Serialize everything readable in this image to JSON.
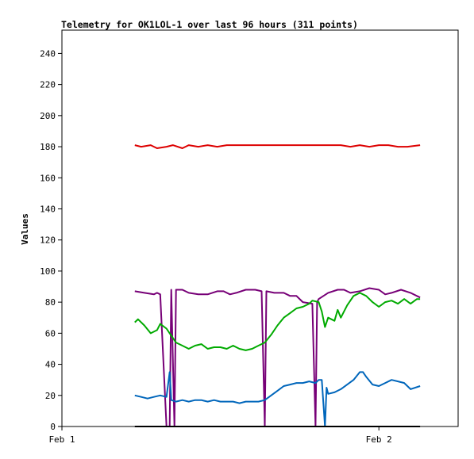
{
  "chart_data": {
    "type": "line",
    "title": "Telemetry for OK1LOL-1 over last 96 hours (311 points)",
    "xlabel": "",
    "ylabel": "Values",
    "x_unit": "days since Feb 1",
    "xlim": [
      0,
      1.25
    ],
    "ylim": [
      0,
      255
    ],
    "x_ticks": [
      {
        "label": "Feb 1",
        "x": 0
      },
      {
        "label": "Feb 2",
        "x": 1
      }
    ],
    "y_ticks": [
      0,
      20,
      40,
      60,
      80,
      100,
      120,
      140,
      160,
      180,
      200,
      220,
      240
    ],
    "grid": false,
    "legend": "none",
    "series": [
      {
        "color": "#dd0000",
        "points": [
          [
            0.23,
            181
          ],
          [
            0.25,
            180
          ],
          [
            0.28,
            181
          ],
          [
            0.3,
            179
          ],
          [
            0.33,
            180
          ],
          [
            0.35,
            181
          ],
          [
            0.38,
            179
          ],
          [
            0.4,
            181
          ],
          [
            0.43,
            180
          ],
          [
            0.46,
            181
          ],
          [
            0.49,
            180
          ],
          [
            0.52,
            181
          ],
          [
            0.55,
            181
          ],
          [
            0.58,
            181
          ],
          [
            0.62,
            181
          ],
          [
            0.66,
            181
          ],
          [
            0.7,
            181
          ],
          [
            0.74,
            181
          ],
          [
            0.78,
            181
          ],
          [
            0.82,
            181
          ],
          [
            0.85,
            181
          ],
          [
            0.88,
            181
          ],
          [
            0.91,
            180
          ],
          [
            0.94,
            181
          ],
          [
            0.97,
            180
          ],
          [
            1.0,
            181
          ],
          [
            1.03,
            181
          ],
          [
            1.06,
            180
          ],
          [
            1.09,
            180
          ],
          [
            1.13,
            181
          ]
        ]
      },
      {
        "color": "#770077",
        "points": [
          [
            0.23,
            87
          ],
          [
            0.26,
            86
          ],
          [
            0.29,
            85
          ],
          [
            0.3,
            86
          ],
          [
            0.31,
            85
          ],
          [
            0.33,
            0
          ],
          [
            0.34,
            0
          ],
          [
            0.345,
            88
          ],
          [
            0.355,
            0
          ],
          [
            0.36,
            88
          ],
          [
            0.38,
            88
          ],
          [
            0.4,
            86
          ],
          [
            0.43,
            85
          ],
          [
            0.46,
            85
          ],
          [
            0.49,
            87
          ],
          [
            0.51,
            87
          ],
          [
            0.53,
            85
          ],
          [
            0.55,
            86
          ],
          [
            0.58,
            88
          ],
          [
            0.61,
            88
          ],
          [
            0.63,
            87
          ],
          [
            0.64,
            0
          ],
          [
            0.645,
            87
          ],
          [
            0.67,
            86
          ],
          [
            0.7,
            86
          ],
          [
            0.72,
            84
          ],
          [
            0.74,
            84
          ],
          [
            0.76,
            80
          ],
          [
            0.79,
            79
          ],
          [
            0.8,
            0
          ],
          [
            0.805,
            80
          ],
          [
            0.81,
            82
          ],
          [
            0.84,
            86
          ],
          [
            0.87,
            88
          ],
          [
            0.89,
            88
          ],
          [
            0.91,
            86
          ],
          [
            0.94,
            87
          ],
          [
            0.97,
            89
          ],
          [
            1.0,
            88
          ],
          [
            1.02,
            85
          ],
          [
            1.04,
            86
          ],
          [
            1.07,
            88
          ],
          [
            1.1,
            86
          ],
          [
            1.13,
            83
          ]
        ]
      },
      {
        "color": "#00aa00",
        "points": [
          [
            0.23,
            67
          ],
          [
            0.24,
            69
          ],
          [
            0.26,
            65
          ],
          [
            0.28,
            60
          ],
          [
            0.3,
            62
          ],
          [
            0.31,
            66
          ],
          [
            0.33,
            63
          ],
          [
            0.34,
            60
          ],
          [
            0.36,
            54
          ],
          [
            0.38,
            52
          ],
          [
            0.4,
            50
          ],
          [
            0.42,
            52
          ],
          [
            0.44,
            53
          ],
          [
            0.46,
            50
          ],
          [
            0.48,
            51
          ],
          [
            0.5,
            51
          ],
          [
            0.52,
            50
          ],
          [
            0.54,
            52
          ],
          [
            0.56,
            50
          ],
          [
            0.58,
            49
          ],
          [
            0.6,
            50
          ],
          [
            0.62,
            52
          ],
          [
            0.64,
            54
          ],
          [
            0.66,
            59
          ],
          [
            0.68,
            65
          ],
          [
            0.7,
            70
          ],
          [
            0.72,
            73
          ],
          [
            0.74,
            76
          ],
          [
            0.76,
            77
          ],
          [
            0.78,
            79
          ],
          [
            0.79,
            81
          ],
          [
            0.81,
            80
          ],
          [
            0.82,
            74
          ],
          [
            0.83,
            64
          ],
          [
            0.84,
            70
          ],
          [
            0.86,
            68
          ],
          [
            0.87,
            75
          ],
          [
            0.88,
            70
          ],
          [
            0.9,
            78
          ],
          [
            0.92,
            84
          ],
          [
            0.94,
            86
          ],
          [
            0.96,
            84
          ],
          [
            0.98,
            80
          ],
          [
            1.0,
            77
          ],
          [
            1.02,
            80
          ],
          [
            1.04,
            81
          ],
          [
            1.06,
            79
          ],
          [
            1.08,
            82
          ],
          [
            1.1,
            79
          ],
          [
            1.12,
            82
          ],
          [
            1.13,
            82
          ]
        ]
      },
      {
        "color": "#0066bb",
        "points": [
          [
            0.23,
            20
          ],
          [
            0.25,
            19
          ],
          [
            0.27,
            18
          ],
          [
            0.29,
            19
          ],
          [
            0.31,
            20
          ],
          [
            0.33,
            19
          ],
          [
            0.34,
            35
          ],
          [
            0.345,
            17
          ],
          [
            0.36,
            16
          ],
          [
            0.38,
            17
          ],
          [
            0.4,
            16
          ],
          [
            0.42,
            17
          ],
          [
            0.44,
            17
          ],
          [
            0.46,
            16
          ],
          [
            0.48,
            17
          ],
          [
            0.5,
            16
          ],
          [
            0.52,
            16
          ],
          [
            0.54,
            16
          ],
          [
            0.56,
            15
          ],
          [
            0.58,
            16
          ],
          [
            0.6,
            16
          ],
          [
            0.62,
            16
          ],
          [
            0.64,
            17
          ],
          [
            0.66,
            20
          ],
          [
            0.68,
            23
          ],
          [
            0.7,
            26
          ],
          [
            0.72,
            27
          ],
          [
            0.74,
            28
          ],
          [
            0.76,
            28
          ],
          [
            0.78,
            29
          ],
          [
            0.8,
            28
          ],
          [
            0.81,
            30
          ],
          [
            0.82,
            30
          ],
          [
            0.83,
            0
          ],
          [
            0.835,
            25
          ],
          [
            0.84,
            21
          ],
          [
            0.86,
            22
          ],
          [
            0.88,
            24
          ],
          [
            0.9,
            27
          ],
          [
            0.92,
            30
          ],
          [
            0.94,
            35
          ],
          [
            0.95,
            35
          ],
          [
            0.96,
            32
          ],
          [
            0.98,
            27
          ],
          [
            1.0,
            26
          ],
          [
            1.02,
            28
          ],
          [
            1.04,
            30
          ],
          [
            1.06,
            29
          ],
          [
            1.08,
            28
          ],
          [
            1.1,
            24
          ],
          [
            1.13,
            26
          ]
        ]
      },
      {
        "color": "#000000",
        "points": [
          [
            0.23,
            0
          ],
          [
            1.13,
            0
          ]
        ]
      }
    ]
  }
}
